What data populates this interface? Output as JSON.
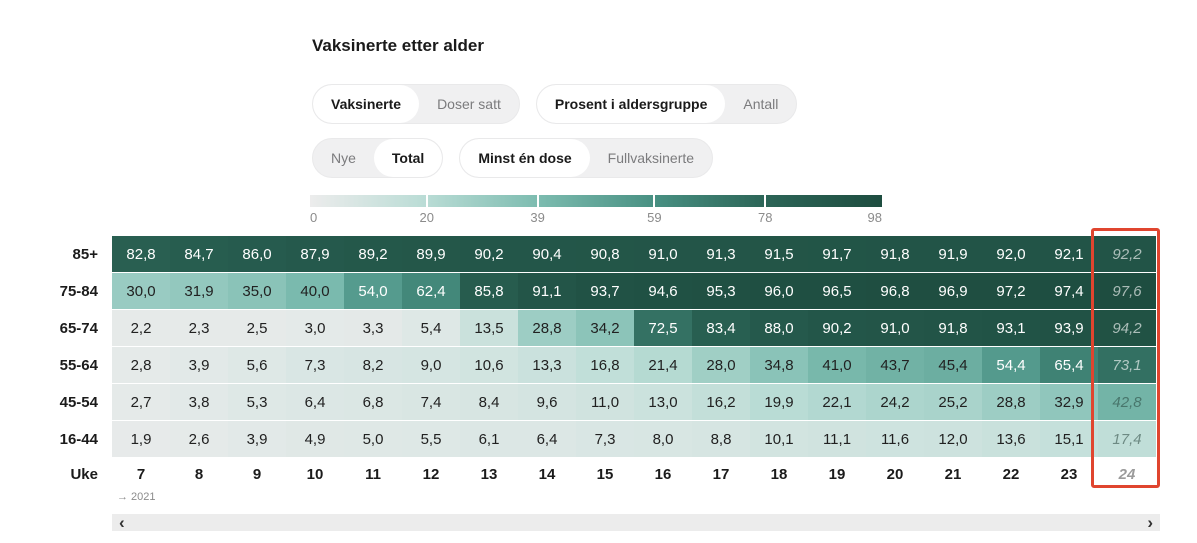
{
  "title": "Vaksinerte etter alder",
  "controls": {
    "rows": [
      [
        {
          "options": [
            {
              "label": "Vaksinerte",
              "selected": true
            },
            {
              "label": "Doser satt",
              "selected": false
            }
          ]
        },
        {
          "options": [
            {
              "label": "Prosent i aldersgruppe",
              "selected": true
            },
            {
              "label": "Antall",
              "selected": false
            }
          ]
        }
      ],
      [
        {
          "options": [
            {
              "label": "Nye",
              "selected": false
            },
            {
              "label": "Total",
              "selected": true
            }
          ]
        },
        {
          "options": [
            {
              "label": "Minst én dose",
              "selected": true
            },
            {
              "label": "Fullvaksinerte",
              "selected": false
            }
          ]
        }
      ]
    ]
  },
  "legend": {
    "tick_labels": [
      "0",
      "20",
      "39",
      "59",
      "78",
      "98"
    ],
    "tick_values": [
      0,
      20,
      39,
      59,
      78,
      98
    ],
    "max": 98,
    "gradient_stops": [
      "#ececec",
      "#b9dcd5",
      "#7dbcb0",
      "#489082",
      "#2c6557",
      "#1e4d40"
    ]
  },
  "table": {
    "row_header": "Uke",
    "year_note": "→ 2021"
  },
  "scrollbar": {
    "left": "‹",
    "right": "›"
  },
  "colors": {
    "highlight_red": "#e0452f",
    "cell_text_dark": "#212121",
    "cell_text_light": "#ffffff"
  },
  "chart_data": {
    "type": "heatmap",
    "title": "Vaksinerte etter alder",
    "x_label": "Uke",
    "x": [
      "7",
      "8",
      "9",
      "10",
      "11",
      "12",
      "13",
      "14",
      "15",
      "16",
      "17",
      "18",
      "19",
      "20",
      "21",
      "22",
      "23",
      "24"
    ],
    "y": [
      "85+",
      "75-84",
      "65-74",
      "55-64",
      "45-54",
      "16-44"
    ],
    "values_display": [
      [
        "82,8",
        "84,7",
        "86,0",
        "87,9",
        "89,2",
        "89,9",
        "90,2",
        "90,4",
        "90,8",
        "91,0",
        "91,3",
        "91,5",
        "91,7",
        "91,8",
        "91,9",
        "92,0",
        "92,1",
        "92,2"
      ],
      [
        "30,0",
        "31,9",
        "35,0",
        "40,0",
        "54,0",
        "62,4",
        "85,8",
        "91,1",
        "93,7",
        "94,6",
        "95,3",
        "96,0",
        "96,5",
        "96,8",
        "96,9",
        "97,2",
        "97,4",
        "97,6"
      ],
      [
        "2,2",
        "2,3",
        "2,5",
        "3,0",
        "3,3",
        "5,4",
        "13,5",
        "28,8",
        "34,2",
        "72,5",
        "83,4",
        "88,0",
        "90,2",
        "91,0",
        "91,8",
        "93,1",
        "93,9",
        "94,2"
      ],
      [
        "2,8",
        "3,9",
        "5,6",
        "7,3",
        "8,2",
        "9,0",
        "10,6",
        "13,3",
        "16,8",
        "21,4",
        "28,0",
        "34,8",
        "41,0",
        "43,7",
        "45,4",
        "54,4",
        "65,4",
        "73,1"
      ],
      [
        "2,7",
        "3,8",
        "5,3",
        "6,4",
        "6,8",
        "7,4",
        "8,4",
        "9,6",
        "11,0",
        "13,0",
        "16,2",
        "19,9",
        "22,1",
        "24,2",
        "25,2",
        "28,8",
        "32,9",
        "42,8"
      ],
      [
        "1,9",
        "2,6",
        "3,9",
        "4,9",
        "5,0",
        "5,5",
        "6,1",
        "6,4",
        "7,3",
        "8,0",
        "8,8",
        "10,1",
        "11,1",
        "11,6",
        "12,0",
        "13,6",
        "15,1",
        "17,4"
      ]
    ],
    "color_scale": {
      "domain": [
        0,
        98
      ],
      "ticks": [
        0,
        20,
        39,
        59,
        78,
        98
      ]
    },
    "highlighted_column": "24",
    "year_note": "→ 2021"
  }
}
